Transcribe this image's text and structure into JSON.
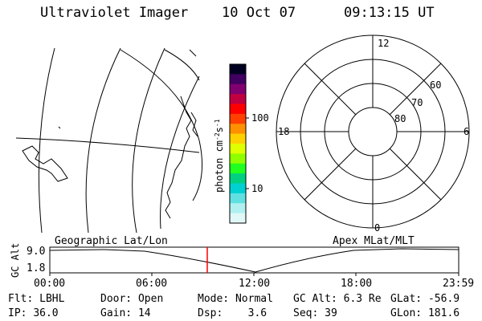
{
  "header": {
    "instrument": "Ultraviolet Imager",
    "date": "10 Oct 07",
    "time": "09:13:15 UT"
  },
  "colorbar": {
    "unit_label": "photon cm",
    "unit_exp": "-2",
    "unit_s": "s",
    "unit_s_exp": "-1",
    "tick_100": "100",
    "tick_10": "10",
    "colors": [
      "#000020",
      "#400060",
      "#800070",
      "#c00040",
      "#ff0000",
      "#ff4000",
      "#ff9000",
      "#ffd000",
      "#e0ff00",
      "#90ff00",
      "#20ff20",
      "#00d080",
      "#00d0d0",
      "#60e0e0",
      "#b0f0f0",
      "#e0f8f8"
    ]
  },
  "polar_plot": {
    "mlt_labels": {
      "top": "12",
      "right": "6",
      "bottom": "0",
      "left": "18"
    },
    "lat_labels": [
      "60",
      "70",
      "80"
    ]
  },
  "altitude_panel": {
    "left_title": "Geographic Lat/Lon",
    "right_title": "Apex MLat/MLT",
    "ylabel": "GC Alt",
    "ytick_top": "9.0",
    "ytick_bottom": "1.8",
    "xticks": [
      "00:00",
      "06:00",
      "12:00",
      "18:00",
      "23:59"
    ],
    "marker_color": "#ff0000"
  },
  "status": {
    "flt_label": "Flt:",
    "flt_value": "LBHL",
    "ip_label": "IP:",
    "ip_value": "36.0",
    "door_label": "Door:",
    "door_value": "Open",
    "gain_label": "Gain:",
    "gain_value": "14",
    "mode_label": "Mode:",
    "mode_value": "Normal",
    "dsp_label": "Dsp:",
    "dsp_value": "3.6",
    "gcalt_label": "GC Alt:",
    "gcalt_value": "6.3 Re",
    "seq_label": "Seq:",
    "seq_value": "39",
    "glat_label": "GLat:",
    "glat_value": "-56.9",
    "glon_label": "GLon:",
    "glon_value": "181.6"
  }
}
